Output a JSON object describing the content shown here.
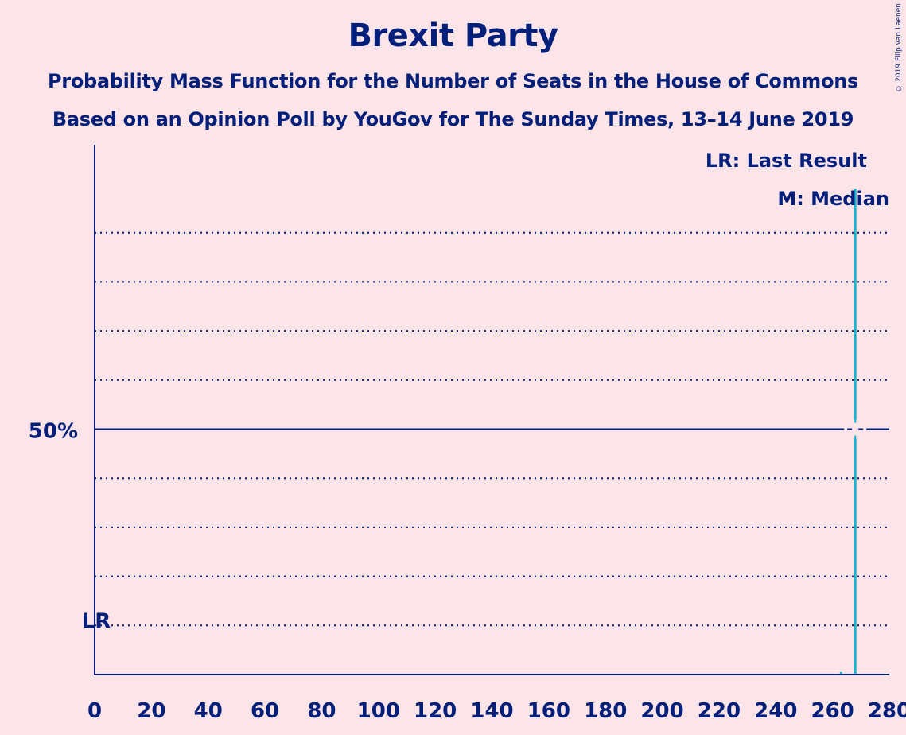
{
  "title": "Brexit Party",
  "subtitle_line1": "Probability Mass Function for the Number of Seats in the House of Commons",
  "subtitle_line2": "Based on an Opinion Poll by YouGov for The Sunday Times, 13–14 June 2019",
  "copyright": "© 2019 Filip van Laenen",
  "legend": {
    "last_result": "LR: Last Result",
    "median": "M: Median"
  },
  "colors": {
    "background": "#fde4e8",
    "axis": "#001f7a",
    "bar": "#12b6cf"
  },
  "chart_data": {
    "type": "bar",
    "title": "Brexit Party",
    "xlabel": "",
    "ylabel": "",
    "xlim": [
      0,
      280
    ],
    "ylim": [
      0,
      100
    ],
    "x_ticks": [
      0,
      20,
      40,
      60,
      80,
      100,
      120,
      140,
      160,
      180,
      200,
      220,
      240,
      260,
      280
    ],
    "y_gridlines": [
      10,
      20,
      30,
      40,
      60,
      70,
      80,
      90
    ],
    "y_labeled_tick": {
      "value": 50,
      "label": "50%"
    },
    "last_result": {
      "seats": 0,
      "label": "LR"
    },
    "median": {
      "seats": 268,
      "label": "M"
    },
    "series": [
      {
        "x": [
          263,
          268
        ],
        "values": [
          0.5,
          99
        ]
      }
    ]
  }
}
